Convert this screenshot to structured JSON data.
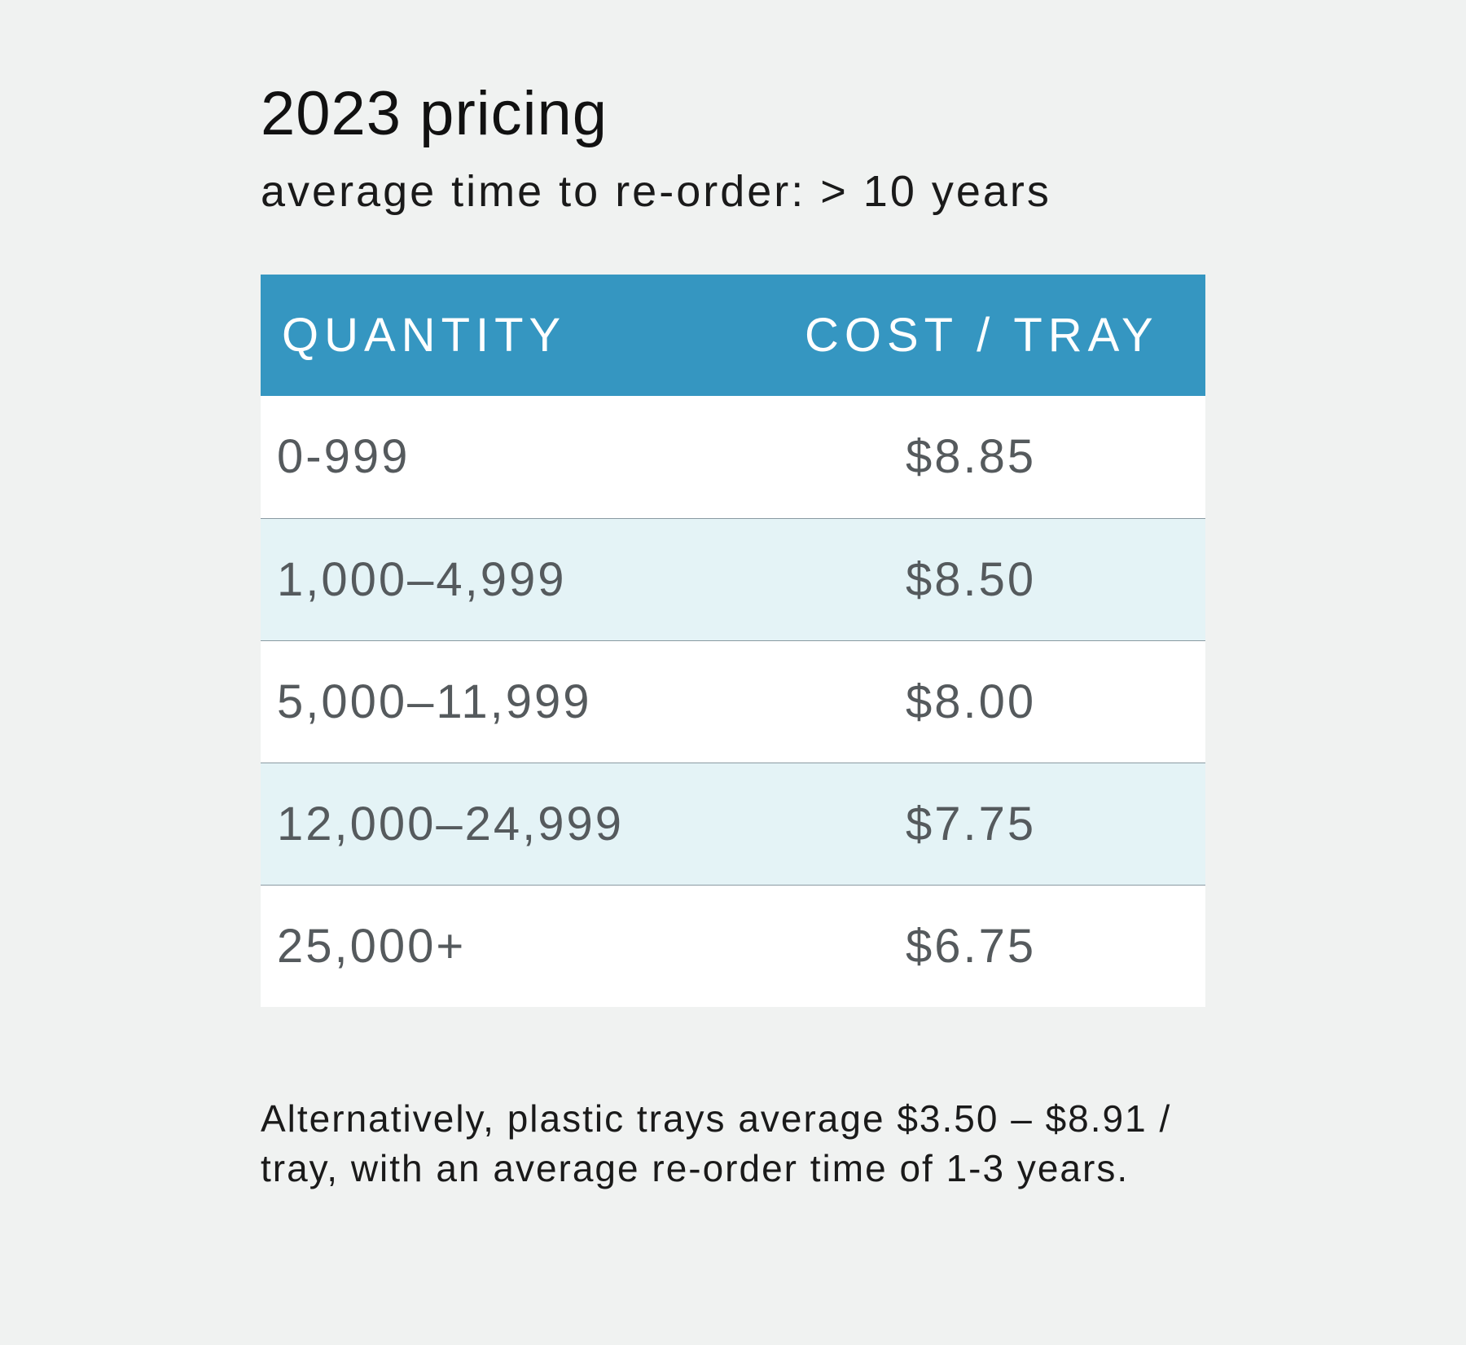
{
  "header": {
    "title": "2023 pricing",
    "subtitle": "average time to re-order: > 10 years"
  },
  "table": {
    "columns": [
      "QUANTITY",
      "COST / TRAY"
    ],
    "rows": [
      {
        "quantity": "0-999",
        "cost": "$8.85"
      },
      {
        "quantity": "1,000–4,999",
        "cost": "$8.50"
      },
      {
        "quantity": "5,000–11,999",
        "cost": "$8.00"
      },
      {
        "quantity": "12,000–24,999",
        "cost": "$7.75"
      },
      {
        "quantity": "25,000+",
        "cost": "$6.75"
      }
    ],
    "header_color": "#3596c1",
    "alt_row_color": "#e4f3f6"
  },
  "footnote": "Alternatively, plastic trays average $3.50 – $8.91 / tray, with an average re-order time of 1-3 years."
}
